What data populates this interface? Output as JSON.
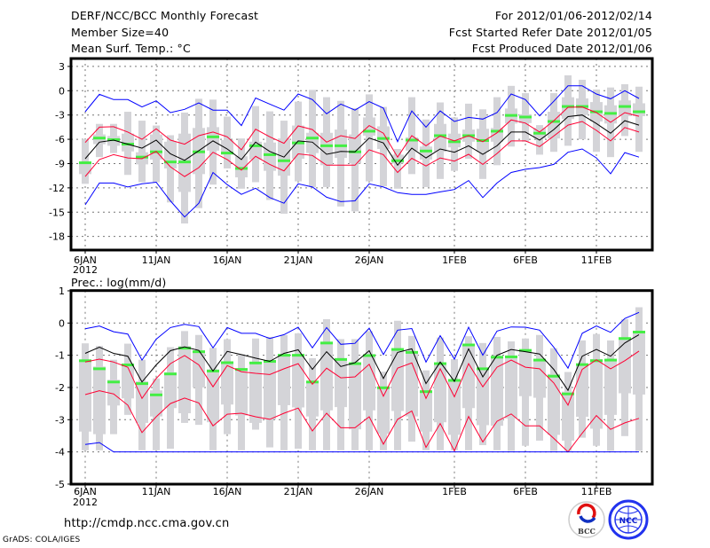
{
  "header": {
    "title": "DERF/NCC/BCC Monthly Forecast",
    "member_size": "Member Size=40",
    "variable": "Mean Surf. Temp.: °C",
    "period": "For 2012/01/06-2012/02/14",
    "refer_date": "Fcst Started Refer Date 2012/01/05",
    "produced_date": "Fcst Produced Date 2012/01/06"
  },
  "footer": {
    "url": "http://cmdp.ncc.cma.gov.cn",
    "grads": "GrADS: COLA/IGES"
  },
  "logos": {
    "bcc": "BCC",
    "ncc": "NCC"
  },
  "colors": {
    "outer": "#0000ff",
    "inner": "#ff0033",
    "mean": "#000000",
    "median": "#44ee44",
    "box": "#d4d4d8",
    "grid": "#777777"
  },
  "chart_data": [
    {
      "type": "line",
      "title": "Mean Surf. Temp.: °C",
      "ylabel": "°C",
      "ylim": [
        -19.7,
        4
      ],
      "yticks": [
        3,
        0,
        -3,
        -6,
        -9,
        -12,
        -15,
        -18
      ],
      "ytick_labels": [
        "3",
        "0",
        "-3",
        "-6",
        "-9",
        "-12",
        "-15",
        "-18"
      ],
      "x_start": "2012-01-06",
      "n_days": 40,
      "xticks": [
        0,
        5,
        10,
        15,
        20,
        26,
        31,
        36
      ],
      "xtick_labels": [
        "6JAN",
        "11JAN",
        "16JAN",
        "21JAN",
        "26JAN",
        "1FEB",
        "6FEB",
        "11FEB"
      ],
      "year_label": "2012",
      "grid": true,
      "series": [
        {
          "name": "outer_upper",
          "color": "#0000ff",
          "values": [
            -2.6,
            -0.45,
            -1.1,
            -1.1,
            -2.0,
            -1.25,
            -2.7,
            -2.3,
            -1.5,
            -2.4,
            -2.4,
            -4.3,
            -0.9,
            -1.65,
            -2.4,
            -0.4,
            -1.1,
            -2.85,
            -1.65,
            -2.4,
            -1.35,
            -2.15,
            -6.3,
            -2.5,
            -4.5,
            -2.5,
            -3.8,
            -3.3,
            -3.5,
            -2.7,
            -0.4,
            -1.1,
            -3.1,
            -1.3,
            0.6,
            0.6,
            -0.4,
            -1.0,
            0.0,
            -0.95
          ]
        },
        {
          "name": "inner_upper",
          "color": "#ff0033",
          "values": [
            -6.4,
            -4.5,
            -4.45,
            -5.1,
            -6.0,
            -4.7,
            -6.1,
            -6.6,
            -5.55,
            -5.1,
            -5.7,
            -7.3,
            -4.75,
            -5.7,
            -6.5,
            -4.35,
            -4.8,
            -6.35,
            -5.55,
            -5.9,
            -4.3,
            -5.25,
            -8.2,
            -5.55,
            -6.8,
            -5.6,
            -6.2,
            -5.55,
            -6.3,
            -5.2,
            -3.6,
            -4.0,
            -5.1,
            -3.7,
            -2.05,
            -2.0,
            -2.7,
            -3.9,
            -2.7,
            -3.15
          ]
        },
        {
          "name": "mean",
          "color": "#000000",
          "values": [
            -8.4,
            -6.35,
            -6.1,
            -6.6,
            -7.1,
            -6.1,
            -7.8,
            -8.6,
            -7.4,
            -6.2,
            -7.2,
            -8.5,
            -6.35,
            -7.5,
            -8.2,
            -6.2,
            -6.35,
            -7.85,
            -7.5,
            -7.55,
            -5.85,
            -6.45,
            -9.2,
            -7.1,
            -8.3,
            -7.2,
            -7.6,
            -6.8,
            -7.85,
            -6.8,
            -5.1,
            -5.1,
            -6.1,
            -4.8,
            -3.2,
            -3.0,
            -4.05,
            -5.25,
            -3.7,
            -4.25
          ]
        },
        {
          "name": "inner_lower",
          "color": "#ff0033",
          "values": [
            -10.6,
            -8.5,
            -7.9,
            -8.3,
            -8.4,
            -7.5,
            -9.4,
            -10.6,
            -9.5,
            -7.6,
            -8.5,
            -9.8,
            -8.1,
            -9.1,
            -9.9,
            -7.8,
            -8.0,
            -9.2,
            -9.2,
            -9.2,
            -7.3,
            -7.9,
            -10.1,
            -8.35,
            -9.3,
            -8.3,
            -8.7,
            -7.85,
            -9.1,
            -7.75,
            -6.2,
            -6.2,
            -6.9,
            -5.6,
            -4.25,
            -3.8,
            -4.9,
            -6.2,
            -4.55,
            -5.1
          ]
        },
        {
          "name": "outer_lower",
          "color": "#0000ff",
          "values": [
            -14.1,
            -11.4,
            -11.4,
            -11.9,
            -11.5,
            -11.3,
            -13.6,
            -15.6,
            -13.9,
            -10.1,
            -11.6,
            -12.8,
            -12.05,
            -13.2,
            -13.9,
            -11.5,
            -11.9,
            -13.15,
            -13.7,
            -13.6,
            -11.5,
            -11.9,
            -12.6,
            -12.8,
            -12.8,
            -12.5,
            -12.2,
            -11.1,
            -13.2,
            -11.4,
            -10.1,
            -9.7,
            -9.5,
            -9.1,
            -7.6,
            -7.2,
            -8.3,
            -10.25,
            -7.65,
            -8.2
          ]
        }
      ],
      "markers": {
        "name": "median",
        "color": "#44ee44",
        "values": [
          -8.9,
          -5.85,
          -6.05,
          -6.6,
          -8.2,
          -7.55,
          -8.8,
          -8.8,
          -7.55,
          -5.7,
          -7.7,
          -9.6,
          -6.8,
          -7.9,
          -8.65,
          -6.45,
          -5.85,
          -6.8,
          -6.8,
          -7.55,
          -5.0,
          -5.9,
          -8.65,
          -6.1,
          -7.45,
          -5.55,
          -6.3,
          -5.55,
          -6.15,
          -5.0,
          -3.05,
          -3.25,
          -5.25,
          -3.8,
          -1.95,
          -1.95,
          -2.6,
          -2.8,
          -1.95,
          -2.6
        ]
      },
      "boxes": [
        [
          -6.0,
          -8.9,
          -10.3,
          -11.5
        ],
        [
          -4.1,
          -5.4,
          -6.6,
          -8.2
        ],
        [
          -4.1,
          -5.6,
          -6.8,
          -7.7
        ],
        [
          -2.6,
          -5.3,
          -7.5,
          -10.4
        ],
        [
          -3.7,
          -7.6,
          -9.1,
          -11.3
        ],
        [
          -4.3,
          -5.4,
          -8.5,
          -11.3
        ],
        [
          -5.5,
          -6.3,
          -9.6,
          -13.8
        ],
        [
          -2.7,
          -5.3,
          -12.5,
          -16.4
        ],
        [
          -1.0,
          -4.6,
          -10.3,
          -14.5
        ],
        [
          -1.1,
          -4.5,
          -7.4,
          -11.6
        ],
        [
          -3.2,
          -6.1,
          -7.9,
          -9.6
        ],
        [
          -5.9,
          -8.1,
          -10.7,
          -12.1
        ],
        [
          -1.9,
          -6.3,
          -8.5,
          -11.3
        ],
        [
          -2.55,
          -6.4,
          -9.9,
          -13.5
        ],
        [
          -3.7,
          -5.9,
          -10.5,
          -15.2
        ],
        [
          -1.35,
          -4.3,
          -8.4,
          -11.2
        ],
        [
          0.1,
          -5.2,
          -7.7,
          -11.9
        ],
        [
          -0.8,
          -5.2,
          -9.2,
          -11.9
        ],
        [
          -1.25,
          -4.8,
          -8.3,
          -14.3
        ],
        [
          -2.15,
          -5.4,
          -9.0,
          -14.9
        ],
        [
          -0.45,
          -3.3,
          -5.55,
          -11.2
        ],
        [
          -2.0,
          -4.4,
          -7.2,
          -11.8
        ],
        [
          -7.2,
          -7.9,
          -9.0,
          -12.1
        ],
        [
          -0.8,
          -5.75,
          -7.4,
          -10.3
        ],
        [
          -3.55,
          -6.9,
          -8.5,
          -11.9
        ],
        [
          -1.45,
          -4.1,
          -7.55,
          -10.9
        ],
        [
          -3.3,
          -5.3,
          -7.0,
          -9.9
        ],
        [
          -1.6,
          -4.8,
          -6.3,
          -8.4
        ],
        [
          -2.3,
          -4.7,
          -7.55,
          -10.9
        ],
        [
          -0.8,
          -4.6,
          -6.3,
          -9.2
        ],
        [
          0.6,
          -2.2,
          -4.05,
          -6.9
        ],
        [
          -0.3,
          -2.9,
          -4.0,
          -6.3
        ],
        [
          -4.25,
          -4.6,
          -5.9,
          -7.9
        ],
        [
          -0.3,
          -2.6,
          -5.9,
          -7.55
        ],
        [
          1.9,
          -0.8,
          -3.5,
          -6.8
        ],
        [
          1.35,
          -0.95,
          -3.0,
          -6.0
        ],
        [
          0.15,
          -1.4,
          -3.8,
          -7.55
        ],
        [
          0.4,
          -1.8,
          -4.05,
          -8.2
        ],
        [
          0.8,
          -1.2,
          -3.15,
          -5.6
        ],
        [
          0.5,
          -1.55,
          -3.15,
          -7.55
        ]
      ]
    },
    {
      "type": "line",
      "title": "Prec.: log(mm/d)",
      "ylabel": "log(mm/d)",
      "ylim": [
        -5,
        1
      ],
      "yticks": [
        1,
        0,
        -1,
        -2,
        -3,
        -4,
        -5
      ],
      "ytick_labels": [
        "1",
        "0",
        "-1",
        "-2",
        "-3",
        "-4",
        "-5"
      ],
      "x_start": "2012-01-06",
      "n_days": 40,
      "xticks": [
        0,
        5,
        10,
        15,
        20,
        26,
        31,
        36
      ],
      "xtick_labels": [
        "6JAN",
        "11JAN",
        "16JAN",
        "21JAN",
        "26JAN",
        "1FEB",
        "6FEB",
        "11FEB"
      ],
      "year_label": "2012",
      "grid": true,
      "series": [
        {
          "name": "outer_upper",
          "color": "#0000ff",
          "values": [
            -0.18,
            -0.09,
            -0.27,
            -0.34,
            -1.15,
            -0.5,
            -0.14,
            -0.04,
            -0.11,
            -0.77,
            -0.14,
            -0.32,
            -0.32,
            -0.48,
            -0.36,
            -0.13,
            -0.77,
            -0.14,
            -0.66,
            -0.63,
            -0.16,
            -0.98,
            -0.22,
            -0.17,
            -1.21,
            -0.39,
            -1.12,
            -0.13,
            -1.0,
            -0.25,
            -0.12,
            -0.13,
            -0.22,
            -0.75,
            -1.4,
            -0.32,
            -0.09,
            -0.29,
            0.14,
            0.33
          ]
        },
        {
          "name": "inner_upper",
          "color": "#ff0033",
          "values": [
            -1.21,
            -1.12,
            -1.21,
            -1.37,
            -2.34,
            -1.72,
            -1.26,
            -1.01,
            -1.3,
            -1.98,
            -1.32,
            -1.51,
            -1.56,
            -1.6,
            -1.42,
            -1.26,
            -1.9,
            -1.4,
            -1.7,
            -1.67,
            -1.28,
            -2.27,
            -1.4,
            -1.24,
            -2.34,
            -1.42,
            -2.29,
            -1.26,
            -1.98,
            -1.37,
            -1.15,
            -1.37,
            -1.42,
            -1.86,
            -2.55,
            -1.44,
            -1.14,
            -1.42,
            -1.17,
            -0.87
          ]
        },
        {
          "name": "mean",
          "color": "#000000",
          "values": [
            -0.94,
            -0.75,
            -0.94,
            -1.03,
            -1.83,
            -1.3,
            -0.86,
            -0.74,
            -0.85,
            -1.49,
            -0.88,
            -0.98,
            -1.09,
            -1.19,
            -0.94,
            -0.83,
            -1.44,
            -0.89,
            -1.35,
            -1.23,
            -0.86,
            -1.72,
            -0.91,
            -0.8,
            -1.88,
            -1.21,
            -1.81,
            -0.8,
            -1.67,
            -1.0,
            -0.82,
            -0.89,
            -0.96,
            -1.44,
            -2.09,
            -1.03,
            -0.82,
            -1.03,
            -0.62,
            -0.36
          ]
        },
        {
          "name": "inner_lower",
          "color": "#ff0033",
          "values": [
            -2.22,
            -2.1,
            -2.2,
            -2.55,
            -3.4,
            -2.91,
            -2.5,
            -2.33,
            -2.48,
            -3.19,
            -2.83,
            -2.8,
            -2.91,
            -2.99,
            -2.8,
            -2.64,
            -3.35,
            -2.8,
            -3.25,
            -3.25,
            -2.91,
            -3.76,
            -2.99,
            -2.73,
            -3.86,
            -3.12,
            -3.97,
            -2.9,
            -3.69,
            -3.05,
            -2.82,
            -3.19,
            -3.19,
            -3.58,
            -4.0,
            -3.42,
            -2.87,
            -3.3,
            -3.1,
            -2.96
          ]
        },
        {
          "name": "outer_lower",
          "color": "#0000ff",
          "values": [
            -3.77,
            -3.71,
            -4,
            -4,
            -4,
            -4,
            -4,
            -4,
            -4,
            -4,
            -4,
            -4,
            -4,
            -4,
            -4,
            -4,
            -4,
            -4,
            -4,
            -4,
            -4,
            -4,
            -4,
            -4,
            -4,
            -4,
            -4,
            -4,
            -4,
            -4,
            -4,
            -4,
            -4,
            -4,
            -4,
            -4,
            -4,
            -4,
            -4,
            -4
          ]
        }
      ],
      "markers": {
        "name": "median",
        "color": "#44ee44",
        "values": [
          -1.17,
          -1.42,
          -1.83,
          -1.3,
          -1.88,
          -2.23,
          -1.58,
          -0.78,
          -0.89,
          -1.49,
          -1.23,
          -1.44,
          -1.24,
          -1.19,
          -1.0,
          -1.0,
          -1.83,
          -0.62,
          -1.13,
          -1.26,
          -1.01,
          -2.01,
          -0.82,
          -0.91,
          -2.13,
          -1.26,
          -1.78,
          -0.68,
          -1.42,
          -1.06,
          -1.05,
          -0.85,
          -1.15,
          -1.65,
          -2.2,
          -1.29,
          -1.17,
          -1.15,
          -0.48,
          -0.28
        ]
      },
      "boxes": [
        [
          -0.63,
          -1.17,
          -3.37,
          -3.95
        ],
        [
          -0.71,
          -1.35,
          -3.45,
          -3.95
        ],
        [
          -1.14,
          -1.76,
          -2.56,
          -3.45
        ],
        [
          -0.64,
          -1.26,
          -2.34,
          -2.85
        ],
        [
          -1.14,
          -1.81,
          -3.1,
          -3.95
        ],
        [
          -1.72,
          -2.09,
          -2.9,
          -3.95
        ],
        [
          -0.75,
          -1.53,
          -2.64,
          -3.9
        ],
        [
          -0.25,
          -0.71,
          -2.8,
          -3.1
        ],
        [
          -0.37,
          -0.89,
          -2.0,
          -3.16
        ],
        [
          -0.77,
          -1.44,
          -3.08,
          -3.95
        ],
        [
          -0.5,
          -1.24,
          -2.53,
          -3.45
        ],
        [
          -0.97,
          -1.44,
          -2.87,
          -3.95
        ],
        [
          -0.48,
          -1.28,
          -3.1,
          -3.31
        ],
        [
          -0.43,
          -1.15,
          -2.99,
          -3.86
        ],
        [
          -0.37,
          -0.98,
          -2.55,
          -3.95
        ],
        [
          -0.32,
          -0.98,
          -2.62,
          -3.9
        ],
        [
          -1.09,
          -1.81,
          -2.9,
          -3.95
        ],
        [
          0.12,
          -0.62,
          -2.71,
          -3.95
        ],
        [
          -0.5,
          -1.13,
          -2.61,
          -3.95
        ],
        [
          -0.5,
          -1.26,
          -3.3,
          -3.95
        ],
        [
          -0.25,
          -0.98,
          -2.71,
          -3.95
        ],
        [
          -1.51,
          -1.99,
          -3.44,
          -3.95
        ],
        [
          0.07,
          -0.8,
          -2.73,
          -3.95
        ],
        [
          -0.4,
          -0.91,
          -2.9,
          -3.68
        ],
        [
          -1.47,
          -2.09,
          -3.37,
          -3.95
        ],
        [
          -0.45,
          -1.26,
          -3.08,
          -3.95
        ],
        [
          -1.12,
          -1.76,
          -3.47,
          -3.95
        ],
        [
          -0.41,
          -0.66,
          -2.64,
          -3.95
        ],
        [
          -0.62,
          -1.42,
          -3.17,
          -3.79
        ],
        [
          -0.43,
          -1.06,
          -3.19,
          -3.95
        ],
        [
          -0.57,
          -1.03,
          -2.96,
          -3.97
        ],
        [
          -0.48,
          -0.85,
          -2.27,
          -3.81
        ],
        [
          -0.37,
          -1.15,
          -2.32,
          -3.65
        ],
        [
          -0.78,
          -1.58,
          -3.47,
          -3.97
        ],
        [
          -1.52,
          -2.13,
          -3.65,
          -3.97
        ],
        [
          -0.54,
          -1.26,
          -2.91,
          -3.56
        ],
        [
          -0.34,
          -1.12,
          -3.28,
          -3.81
        ],
        [
          -0.54,
          -1.12,
          -2.85,
          -3.97
        ],
        [
          0.12,
          -0.45,
          -2.18,
          -3.51
        ],
        [
          0.49,
          -0.25,
          -2.22,
          -3.97
        ]
      ]
    }
  ]
}
